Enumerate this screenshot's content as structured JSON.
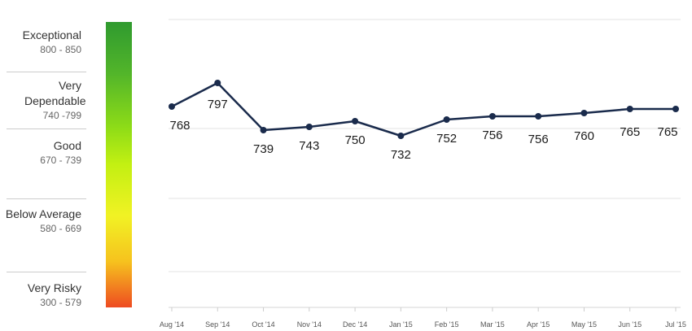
{
  "bands": [
    {
      "name": "Exceptional",
      "range": "800 - 850"
    },
    {
      "name": "Very Dependable",
      "range": "740 -799"
    },
    {
      "name": "Good",
      "range": "670 - 739"
    },
    {
      "name": "Below Average",
      "range": "580 - 669"
    },
    {
      "name": "Very Risky",
      "range": "300 - 579"
    }
  ],
  "colors": {
    "line": "#1a2b4c",
    "grid": "#e3e3e3"
  },
  "chart_data": {
    "type": "line",
    "categories": [
      "Aug '14",
      "Sep '14",
      "Oct '14",
      "Nov '14",
      "Dec '14",
      "Jan '15",
      "Feb '15",
      "Mar '15",
      "Apr '15",
      "May '15",
      "Jun '15",
      "Jul '15"
    ],
    "values": [
      768,
      797,
      739,
      743,
      750,
      732,
      752,
      756,
      756,
      760,
      765,
      765
    ],
    "data_labels": [
      "768",
      "797",
      "739",
      "743",
      "750",
      "732",
      "752",
      "756",
      "756",
      "760",
      "765",
      "765"
    ],
    "title": "",
    "xlabel": "",
    "ylabel": "",
    "ylim": [
      650,
      860
    ],
    "grid": true,
    "legend": "none"
  }
}
